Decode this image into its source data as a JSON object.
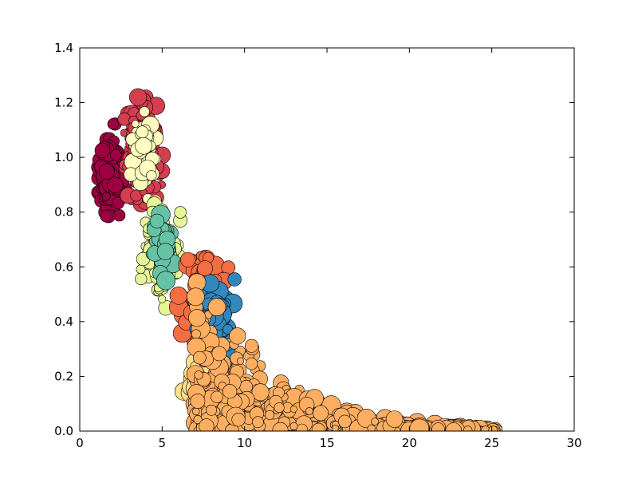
{
  "chart_data": {
    "type": "scatter",
    "title": "",
    "xlabel": "",
    "ylabel": "",
    "xlim": [
      0,
      30
    ],
    "ylim": [
      0,
      1.4
    ],
    "grid": false,
    "legend": "none",
    "x_ticks": [
      "0",
      "5",
      "10",
      "15",
      "20",
      "25",
      "30"
    ],
    "y_ticks": [
      "0.0",
      "0.2",
      "0.4",
      "0.6",
      "0.8",
      "1.0",
      "1.2",
      "1.4"
    ],
    "x_tick_values": [
      0,
      5,
      10,
      15,
      20,
      25,
      30
    ],
    "y_tick_values": [
      0,
      0.2,
      0.4,
      0.6,
      0.8,
      1.0,
      1.2,
      1.4
    ],
    "clusters": [
      {
        "color": "#9e0142",
        "x_range": [
          1.0,
          2.7
        ],
        "y_range": [
          0.75,
          1.13
        ],
        "center": [
          1.9,
          0.95
        ],
        "points": 160,
        "size_range": [
          4,
          10
        ]
      },
      {
        "color": "#d53e4f",
        "x_range": [
          2.7,
          5.0
        ],
        "y_range": [
          0.83,
          1.22
        ],
        "center": [
          3.8,
          1.03
        ],
        "points": 170,
        "size_range": [
          4,
          11
        ]
      },
      {
        "color": "#fee08b",
        "x_range": [
          6.3,
          9.3
        ],
        "y_range": [
          0.08,
          0.32
        ],
        "center": [
          7.6,
          0.21
        ],
        "points": 120,
        "size_range": [
          5,
          13
        ]
      },
      {
        "color": "#ffffbf",
        "x_range": [
          3.1,
          4.6
        ],
        "y_range": [
          0.84,
          1.2
        ],
        "center": [
          3.9,
          1.02
        ],
        "points": 70,
        "size_range": [
          4,
          11
        ]
      },
      {
        "color": "#e6f598",
        "x_range": [
          3.7,
          6.1
        ],
        "y_range": [
          0.45,
          0.84
        ],
        "center": [
          4.8,
          0.65
        ],
        "points": 110,
        "size_range": [
          4,
          10
        ]
      },
      {
        "color": "#66c2a5",
        "x_range": [
          4.2,
          5.7
        ],
        "y_range": [
          0.55,
          0.82
        ],
        "center": [
          5.0,
          0.66
        ],
        "points": 60,
        "size_range": [
          5,
          12
        ]
      },
      {
        "color": "#f46d43",
        "x_range": [
          6.0,
          9.3
        ],
        "y_range": [
          0.25,
          0.71
        ],
        "center": [
          7.7,
          0.5
        ],
        "points": 160,
        "size_range": [
          5,
          12
        ]
      },
      {
        "color": "#3288bd",
        "x_range": [
          7.0,
          9.4
        ],
        "y_range": [
          0.25,
          0.56
        ],
        "center": [
          8.2,
          0.38
        ],
        "points": 110,
        "size_range": [
          6,
          14
        ]
      },
      {
        "color": "#fdae61",
        "x_range": [
          7.0,
          25.3
        ],
        "y_range": [
          0.0,
          0.4
        ],
        "center": [
          14,
          0.08
        ],
        "points": 900,
        "size_range": [
          4,
          12
        ]
      }
    ]
  }
}
